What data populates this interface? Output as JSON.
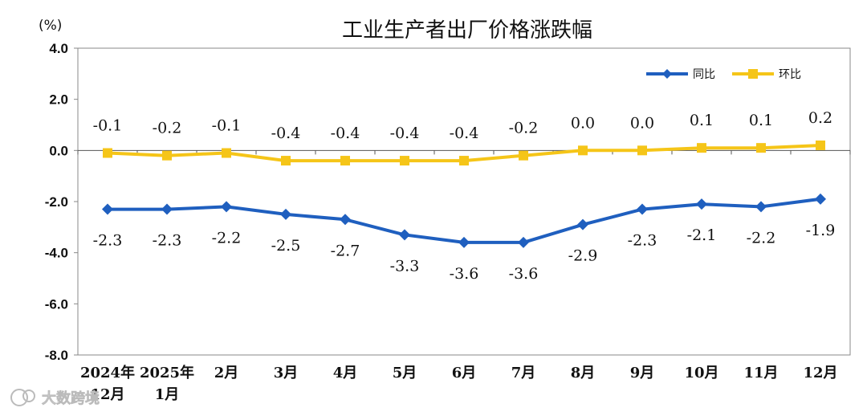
{
  "chart_data": {
    "type": "line",
    "title": "工业生产者出厂价格涨跌幅",
    "unit": "(%)",
    "ylim": [
      -8.0,
      4.0
    ],
    "yticks": [
      "4.0",
      "2.0",
      "0.0",
      "-2.0",
      "-4.0",
      "-6.0",
      "-8.0"
    ],
    "categories": [
      [
        "2024年",
        "12月"
      ],
      [
        "2025年",
        "1月"
      ],
      [
        "2月"
      ],
      [
        "3月"
      ],
      [
        "4月"
      ],
      [
        "5月"
      ],
      [
        "6月"
      ],
      [
        "7月"
      ],
      [
        "8月"
      ],
      [
        "9月"
      ],
      [
        "10月"
      ],
      [
        "11月"
      ],
      [
        "12月"
      ]
    ],
    "series": [
      {
        "name": "同比",
        "color": "#1f5fbf",
        "marker": "diamond",
        "values": [
          -2.3,
          -2.3,
          -2.2,
          -2.5,
          -2.7,
          -3.3,
          -3.6,
          -3.6,
          -2.9,
          -2.3,
          -2.1,
          -2.2,
          -1.9
        ],
        "labels": [
          "-2.3",
          "-2.3",
          "-2.2",
          "-2.5",
          "-2.7",
          "-3.3",
          "-3.6",
          "-3.6",
          "-2.9",
          "-2.3",
          "-2.1",
          "-2.2",
          "-1.9"
        ]
      },
      {
        "name": "环比",
        "color": "#f5c518",
        "marker": "square",
        "values": [
          -0.1,
          -0.2,
          -0.1,
          -0.4,
          -0.4,
          -0.4,
          -0.4,
          -0.2,
          0.0,
          0.0,
          0.1,
          0.1,
          0.2
        ],
        "labels": [
          "-0.1",
          "-0.2",
          "-0.1",
          "-0.4",
          "-0.4",
          "-0.4",
          "-0.4",
          "-0.2",
          "0.0",
          "0.0",
          "0.1",
          "0.1",
          "0.2"
        ]
      }
    ],
    "legend": "top-right",
    "grid": false
  },
  "watermark": {
    "text": "大数跨境",
    "icon": "brand-logo-icon"
  }
}
